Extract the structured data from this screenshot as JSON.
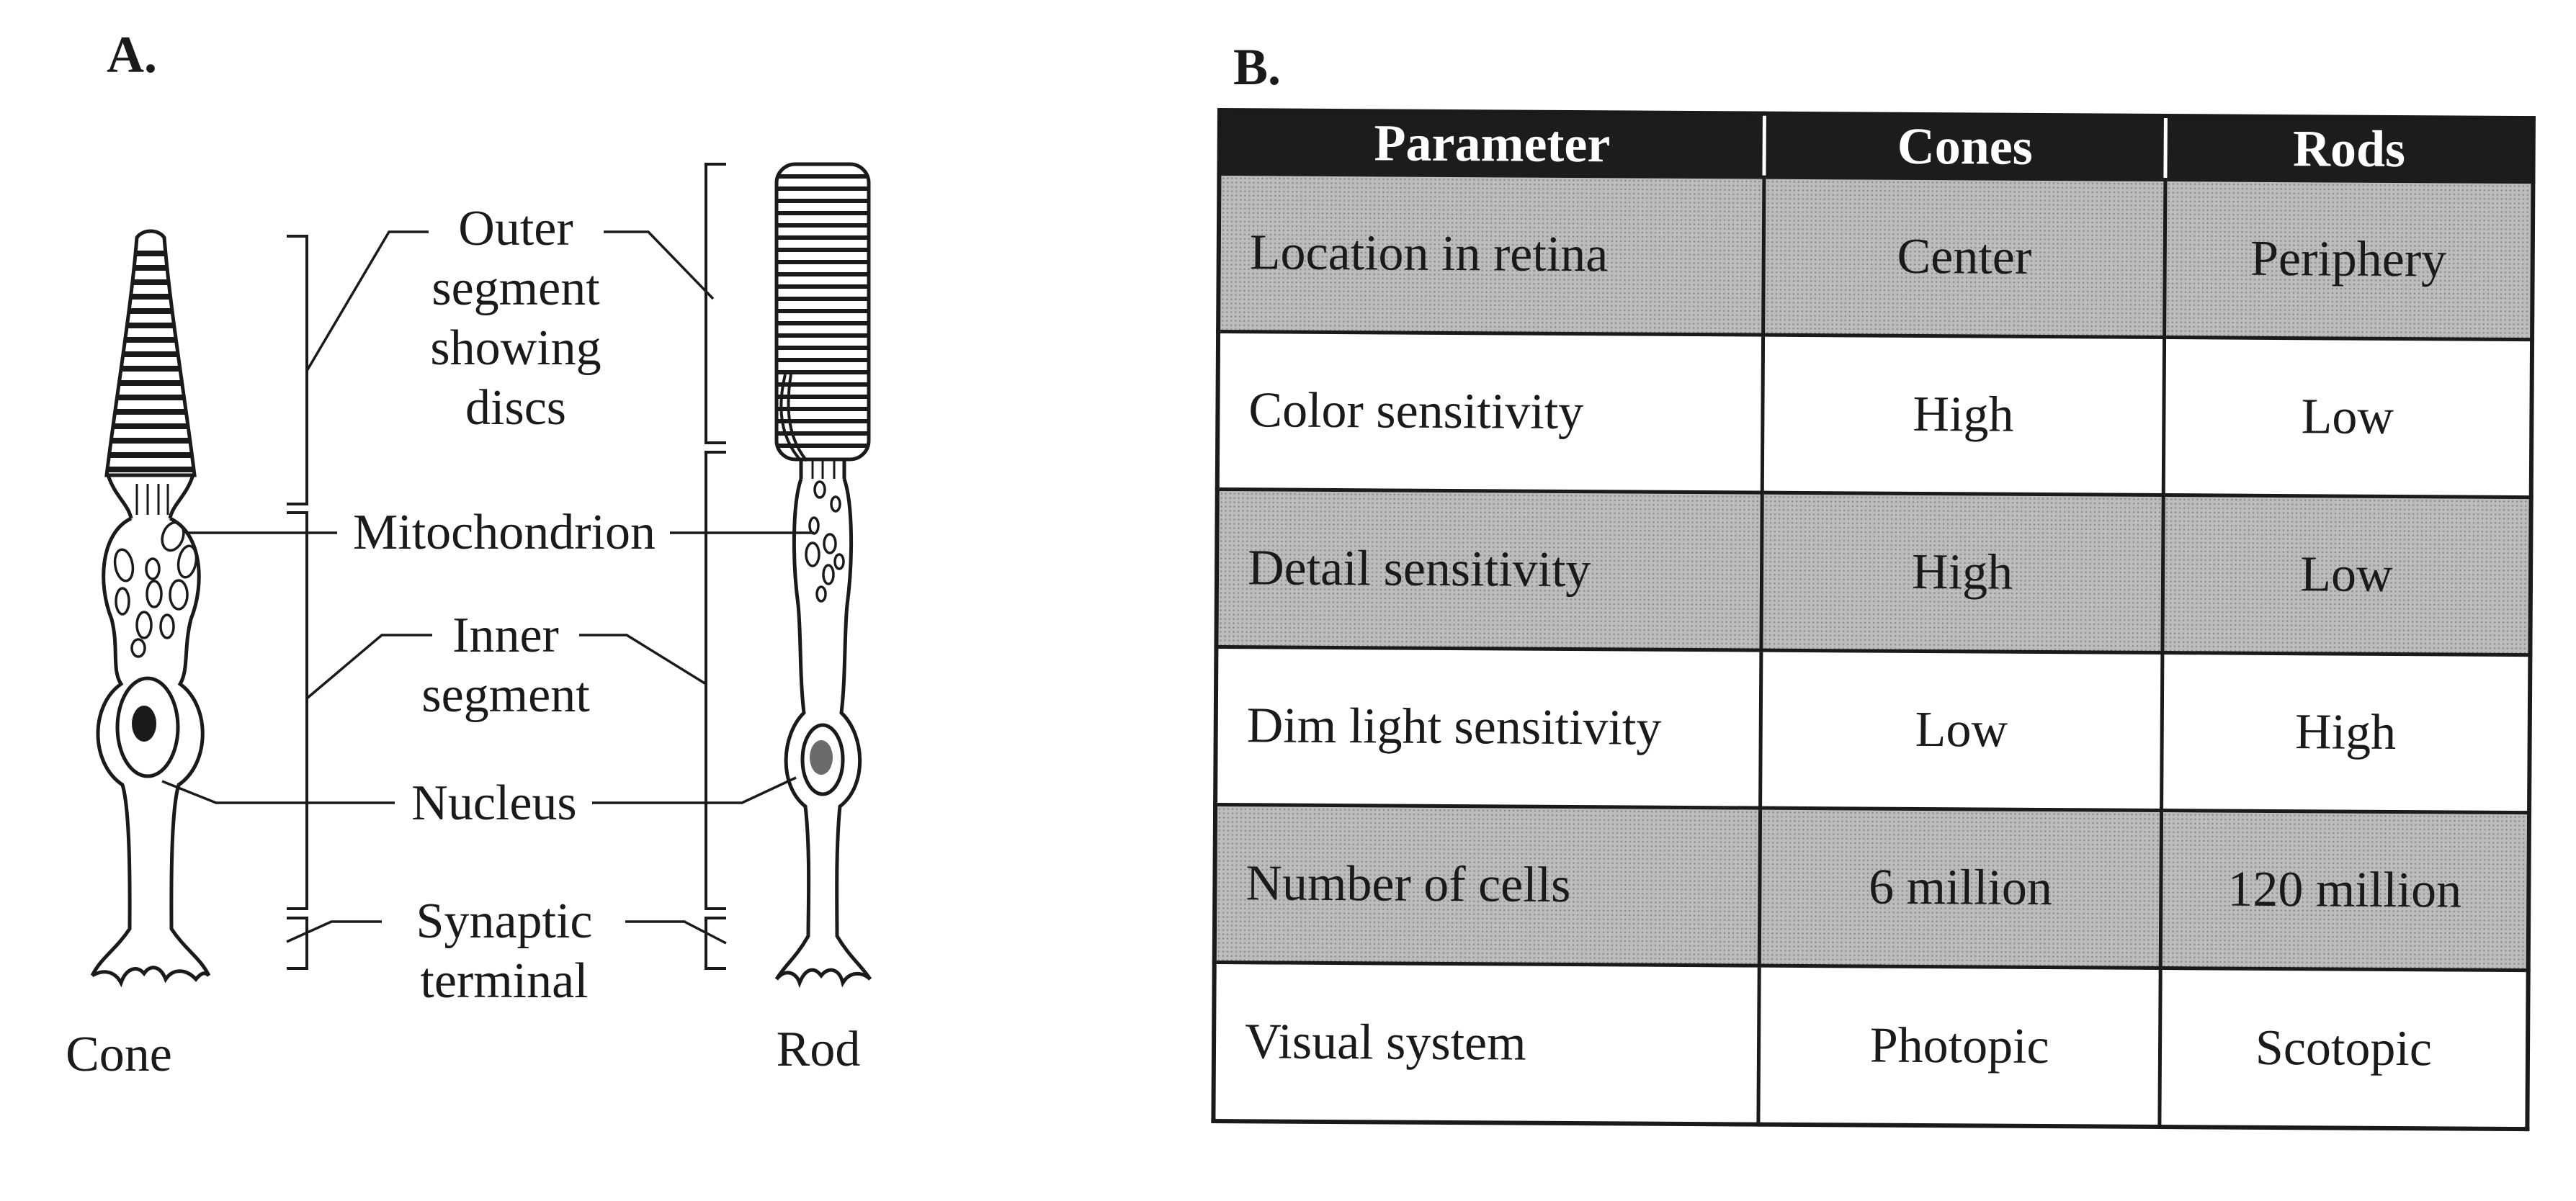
{
  "panel_a": {
    "label": "A.",
    "labels": {
      "outer_line1": "Outer",
      "outer_line2": "segment",
      "outer_line3": "showing",
      "outer_line4": "discs",
      "mitochondrion": "Mitochondrion",
      "inner_line1": "Inner",
      "inner_line2": "segment",
      "nucleus": "Nucleus",
      "synaptic_line1": "Synaptic",
      "synaptic_line2": "terminal",
      "cone": "Cone",
      "rod": "Rod"
    }
  },
  "panel_b": {
    "label": "B.",
    "headers": [
      "Parameter",
      "Cones",
      "Rods"
    ],
    "rows": [
      [
        "Location in retina",
        "Center",
        "Periphery"
      ],
      [
        "Color sensitivity",
        "High",
        "Low"
      ],
      [
        "Detail sensitivity",
        "High",
        "Low"
      ],
      [
        "Dim light sensitivity",
        "Low",
        "High"
      ],
      [
        "Number of cells",
        "6 million",
        "120 million"
      ],
      [
        "Visual system",
        "Photopic",
        "Scotopic"
      ]
    ]
  }
}
